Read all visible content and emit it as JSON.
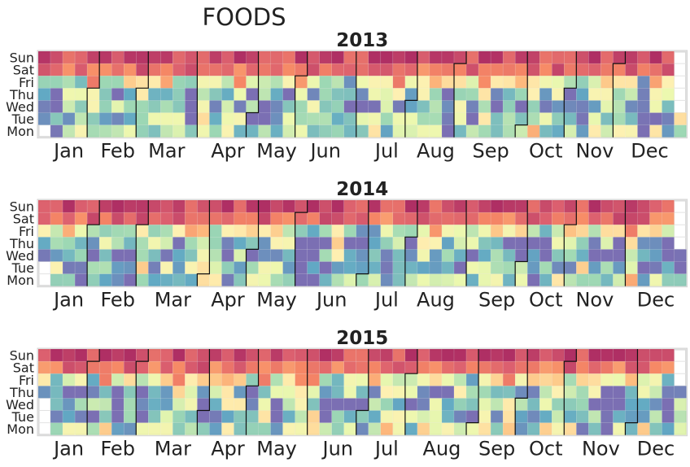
{
  "figure": {
    "title": "FOODS"
  },
  "chart_data": {
    "type": "heatmap",
    "title": "FOODS",
    "subtype": "calendar-heatmap",
    "colormap": [
      "#5e4fa2",
      "#3f96b7",
      "#88cfa4",
      "#e7f69d",
      "#feeda1",
      "#fdb164",
      "#f46d43",
      "#d53e4f",
      "#9e0142"
    ],
    "day_labels": [
      "Mon",
      "Tue",
      "Wed",
      "Thu",
      "Fri",
      "Sat",
      "Sun"
    ],
    "month_labels": [
      "Jan",
      "Feb",
      "Mar",
      "Apr",
      "May",
      "Jun",
      "Jul",
      "Aug",
      "Sep",
      "Oct",
      "Nov",
      "Dec"
    ],
    "day_profile": [
      0.3,
      0.2,
      0.15,
      0.2,
      0.45,
      0.82,
      0.93
    ],
    "panels": [
      {
        "year": 2013,
        "title": "2013",
        "seed": 11
      },
      {
        "year": 2014,
        "title": "2014",
        "seed": 23
      },
      {
        "year": 2015,
        "title": "2015",
        "seed": 37
      }
    ]
  }
}
